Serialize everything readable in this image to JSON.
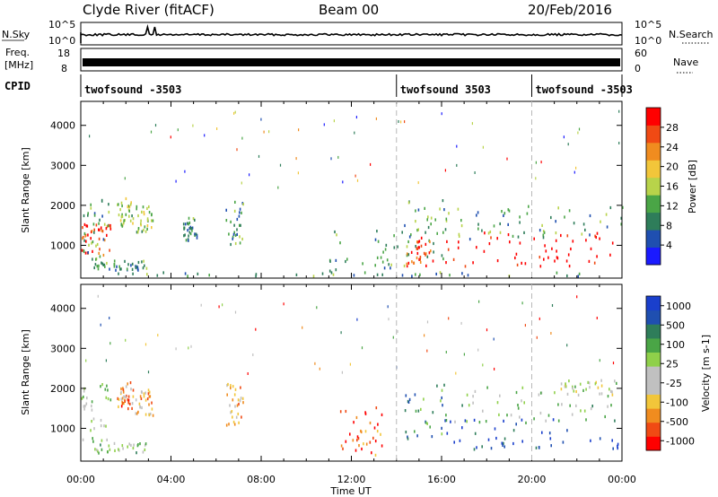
{
  "header": {
    "station": "Clyde River (fitACF)",
    "beam": "Beam 00",
    "date": "20/Feb/2016"
  },
  "strip_panels": {
    "nsky": {
      "left_label": "N.Sky",
      "right_label": "N.Search",
      "left_ticks": [
        "10^5",
        "10^0"
      ],
      "right_ticks": [
        "10^5",
        "10^0"
      ]
    },
    "freq": {
      "left_label_1": "Freq.",
      "left_label_2": "[MHz]",
      "right_label": "Nave",
      "left_ticks": [
        "18",
        "8"
      ],
      "right_ticks": [
        "60",
        "0"
      ]
    },
    "cpid": {
      "label": "CPID",
      "segments": [
        "twofsound -3503",
        "twofsound 3503",
        "twofsound -3503"
      ],
      "segment_starts_hours": [
        0,
        14,
        20
      ]
    }
  },
  "time_axis": {
    "label": "Time UT",
    "ticks": [
      "00:00",
      "04:00",
      "08:00",
      "12:00",
      "16:00",
      "20:00",
      "00:00"
    ]
  },
  "chart_data": [
    {
      "type": "heatmap",
      "parameter": "Power",
      "ylabel": "Slant Range [km]",
      "y_ticks": [
        1000,
        2000,
        3000,
        4000
      ],
      "ylim": [
        180,
        4600
      ],
      "xlim_hours": [
        0,
        24
      ],
      "colorbar": {
        "label": "Power [dB]",
        "ticks": [
          4,
          8,
          12,
          16,
          20,
          24,
          28
        ],
        "range": [
          0,
          32
        ],
        "colors": [
          "#1a1aff",
          "#1f4fb0",
          "#2e7d5a",
          "#4aa546",
          "#b8d34a",
          "#f2c63a",
          "#f08c1f",
          "#f04a14",
          "#ff0000"
        ]
      },
      "scatter_regions": [
        {
          "t": [
            0.0,
            1.3
          ],
          "r": [
            700,
            1500
          ],
          "level": 0.9
        },
        {
          "t": [
            0.1,
            1.3
          ],
          "r": [
            400,
            2200
          ],
          "level": 0.35
        },
        {
          "t": [
            0.5,
            3.0
          ],
          "r": [
            350,
            600
          ],
          "level": 0.3
        },
        {
          "t": [
            1.6,
            2.3
          ],
          "r": [
            1450,
            2150
          ],
          "level": 0.45
        },
        {
          "t": [
            2.4,
            3.2
          ],
          "r": [
            1300,
            1950
          ],
          "level": 0.45
        },
        {
          "t": [
            4.5,
            5.2
          ],
          "r": [
            1100,
            1700
          ],
          "level": 0.3
        },
        {
          "t": [
            6.4,
            7.2
          ],
          "r": [
            1000,
            2100
          ],
          "level": 0.3
        },
        {
          "t": [
            11.0,
            14.4
          ],
          "r": [
            200,
            1400
          ],
          "level": 0.3
        },
        {
          "t": [
            14.3,
            16.2
          ],
          "r": [
            600,
            2100
          ],
          "level": 0.35
        },
        {
          "t": [
            14.4,
            15.6
          ],
          "r": [
            450,
            1200
          ],
          "level": 0.85
        },
        {
          "t": [
            16.0,
            24.0
          ],
          "r": [
            450,
            1300
          ],
          "level": 0.95
        },
        {
          "t": [
            16.0,
            24.0
          ],
          "r": [
            1100,
            2000
          ],
          "level": 0.35
        },
        {
          "t": [
            0,
            24
          ],
          "r": [
            200,
            300
          ],
          "level": 0.3
        }
      ]
    },
    {
      "type": "heatmap",
      "parameter": "Velocity",
      "ylabel": "Slant Range [km]",
      "y_ticks": [
        1000,
        2000,
        3000,
        4000
      ],
      "ylim": [
        180,
        4600
      ],
      "xlim_hours": [
        0,
        24
      ],
      "colorbar": {
        "label": "Velocity [m s-1]",
        "ticks": [
          1000,
          500,
          100,
          25,
          -25,
          -100,
          -500,
          -1000
        ],
        "range": [
          -1250,
          1250
        ],
        "colors": [
          "#ff0000",
          "#f04a14",
          "#f08c1f",
          "#f2c63a",
          "#c0c0c0",
          "#c0c0c0",
          "#8fd04a",
          "#4aa546",
          "#2e7d5a",
          "#1f4fb0",
          "#1a3fcc"
        ]
      },
      "scatter_regions": [
        {
          "t": [
            0.0,
            1.3
          ],
          "r": [
            600,
            2200
          ],
          "level": 0.55
        },
        {
          "t": [
            0.5,
            3.0
          ],
          "r": [
            350,
            600
          ],
          "level": 0.6
        },
        {
          "t": [
            1.6,
            2.3
          ],
          "r": [
            1450,
            2150
          ],
          "level": 0.25
        },
        {
          "t": [
            2.4,
            3.2
          ],
          "r": [
            1300,
            1950
          ],
          "level": 0.3
        },
        {
          "t": [
            6.4,
            7.2
          ],
          "r": [
            1000,
            2100
          ],
          "level": 0.3
        },
        {
          "t": [
            11.5,
            13.5
          ],
          "r": [
            300,
            1500
          ],
          "level": 0.15
        },
        {
          "t": [
            14.3,
            16.2
          ],
          "r": [
            600,
            2100
          ],
          "level": 0.75
        },
        {
          "t": [
            16.0,
            24.0
          ],
          "r": [
            450,
            1200
          ],
          "level": 0.95
        },
        {
          "t": [
            16.0,
            24.0
          ],
          "r": [
            1100,
            2000
          ],
          "level": 0.6
        },
        {
          "t": [
            21.0,
            24.0
          ],
          "r": [
            1800,
            2200
          ],
          "level": 0.5
        }
      ]
    }
  ]
}
